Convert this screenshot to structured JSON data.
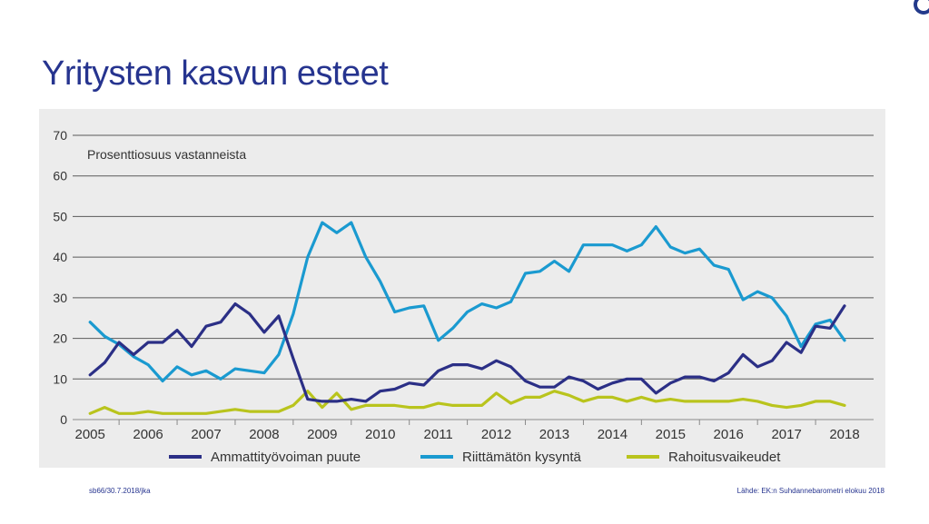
{
  "slide": {
    "title": "Yritysten kasvun esteet",
    "footer_left": "sb66/30.7.2018/jka",
    "footer_right": "Lähde: EK:n Suhdannebarometri elokuu 2018",
    "brand_color": "#26348f"
  },
  "chart_data": {
    "type": "line",
    "annotation": "Prosenttiosuus vastanneista",
    "ylim": [
      0,
      70
    ],
    "yticks": [
      0,
      10,
      20,
      30,
      40,
      50,
      60,
      70
    ],
    "xlim": [
      2004.7,
      2018.5
    ],
    "xticks": [
      2005,
      2006,
      2007,
      2008,
      2009,
      2010,
      2011,
      2012,
      2013,
      2014,
      2015,
      2016,
      2017,
      2018
    ],
    "grid": true,
    "legend_position": "bottom",
    "series": [
      {
        "name": "Ammattityövoiman puute",
        "color": "#2b2f86",
        "x": [
          2005,
          2005.25,
          2005.5,
          2005.75,
          2006,
          2006.25,
          2006.5,
          2006.75,
          2007,
          2007.25,
          2007.5,
          2007.75,
          2008,
          2008.25,
          2008.5,
          2008.75,
          2009,
          2009.25,
          2009.5,
          2009.75,
          2010,
          2010.25,
          2010.5,
          2010.75,
          2011,
          2011.25,
          2011.5,
          2011.75,
          2012,
          2012.25,
          2012.5,
          2012.75,
          2013,
          2013.25,
          2013.5,
          2013.75,
          2014,
          2014.25,
          2014.5,
          2014.75,
          2015,
          2015.25,
          2015.5,
          2015.75,
          2016,
          2016.25,
          2016.5,
          2016.75,
          2017,
          2017.25,
          2017.5,
          2017.75,
          2018
        ],
        "values": [
          11,
          14,
          19,
          16,
          19,
          19,
          22,
          18,
          23,
          24,
          28.5,
          26,
          21.5,
          25.5,
          15,
          5,
          4.5,
          4.5,
          5,
          4.5,
          7,
          7.5,
          9,
          8.5,
          12,
          13.5,
          13.5,
          12.5,
          14.5,
          13,
          9.5,
          8,
          8,
          10.5,
          9.5,
          7.5,
          9,
          10,
          10,
          6.5,
          9,
          10.5,
          10.5,
          9.5,
          11.5,
          16,
          13,
          14.5,
          19,
          16.5,
          23,
          22.5,
          28
        ]
      },
      {
        "name": "Riittämätön kysyntä",
        "color": "#1a9ad0",
        "x": [
          2005,
          2005.25,
          2005.5,
          2005.75,
          2006,
          2006.25,
          2006.5,
          2006.75,
          2007,
          2007.25,
          2007.5,
          2007.75,
          2008,
          2008.25,
          2008.5,
          2008.75,
          2009,
          2009.25,
          2009.5,
          2009.75,
          2010,
          2010.25,
          2010.5,
          2010.75,
          2011,
          2011.25,
          2011.5,
          2011.75,
          2012,
          2012.25,
          2012.5,
          2012.75,
          2013,
          2013.25,
          2013.5,
          2013.75,
          2014,
          2014.25,
          2014.5,
          2014.75,
          2015,
          2015.25,
          2015.5,
          2015.75,
          2016,
          2016.25,
          2016.5,
          2016.75,
          2017,
          2017.25,
          2017.5,
          2017.75,
          2018
        ],
        "values": [
          24,
          20.5,
          18.5,
          15.5,
          13.5,
          9.5,
          13,
          11,
          12,
          10,
          12.5,
          12,
          11.5,
          16,
          26,
          40,
          48.5,
          46,
          48.5,
          40,
          34,
          26.5,
          27.5,
          28,
          19.5,
          22.5,
          26.5,
          28.5,
          27.5,
          29,
          36,
          36.5,
          39,
          36.5,
          43,
          43,
          43,
          41.5,
          43,
          47.5,
          42.5,
          41,
          42,
          38,
          37,
          29.5,
          31.5,
          30,
          25.5,
          18,
          23.5,
          24.5,
          19.5
        ]
      },
      {
        "name": "Rahoitusvaikeudet",
        "color": "#b9c41d",
        "x": [
          2005,
          2005.25,
          2005.5,
          2005.75,
          2006,
          2006.25,
          2006.5,
          2006.75,
          2007,
          2007.25,
          2007.5,
          2007.75,
          2008,
          2008.25,
          2008.5,
          2008.75,
          2009,
          2009.25,
          2009.5,
          2009.75,
          2010,
          2010.25,
          2010.5,
          2010.75,
          2011,
          2011.25,
          2011.5,
          2011.75,
          2012,
          2012.25,
          2012.5,
          2012.75,
          2013,
          2013.25,
          2013.5,
          2013.75,
          2014,
          2014.25,
          2014.5,
          2014.75,
          2015,
          2015.25,
          2015.5,
          2015.75,
          2016,
          2016.25,
          2016.5,
          2016.75,
          2017,
          2017.25,
          2017.5,
          2017.75,
          2018
        ],
        "values": [
          1.5,
          3,
          1.5,
          1.5,
          2,
          1.5,
          1.5,
          1.5,
          1.5,
          2,
          2.5,
          2,
          2,
          2,
          3.5,
          7,
          3,
          6.5,
          2.5,
          3.5,
          3.5,
          3.5,
          3,
          3,
          4,
          3.5,
          3.5,
          3.5,
          6.5,
          4,
          5.5,
          5.5,
          7,
          6,
          4.5,
          5.5,
          5.5,
          4.5,
          5.5,
          4.5,
          5,
          4.5,
          4.5,
          4.5,
          4.5,
          5,
          4.5,
          3.5,
          3,
          3.5,
          4.5,
          4.5,
          3.5
        ]
      }
    ]
  }
}
